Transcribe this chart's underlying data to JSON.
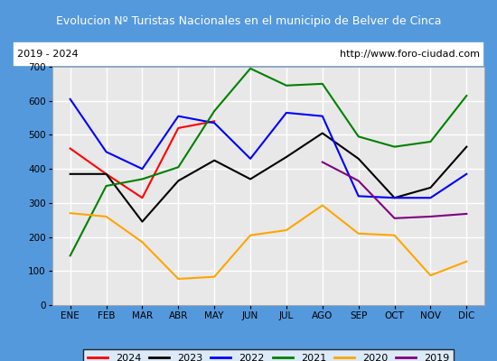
{
  "title": "Evolucion Nº Turistas Nacionales en el municipio de Belver de Cinca",
  "subtitle_left": "2019 - 2024",
  "subtitle_right": "http://www.foro-ciudad.com",
  "x_labels": [
    "ENE",
    "FEB",
    "MAR",
    "ABR",
    "MAY",
    "JUN",
    "JUL",
    "AGO",
    "SEP",
    "OCT",
    "NOV",
    "DIC"
  ],
  "ylim": [
    0,
    700
  ],
  "yticks": [
    0,
    100,
    200,
    300,
    400,
    500,
    600,
    700
  ],
  "series": {
    "2024": {
      "color": "red",
      "data": [
        460,
        385,
        315,
        520,
        540,
        null,
        null,
        null,
        null,
        null,
        null,
        null
      ]
    },
    "2023": {
      "color": "black",
      "data": [
        385,
        385,
        245,
        365,
        425,
        370,
        435,
        505,
        430,
        315,
        345,
        465
      ]
    },
    "2022": {
      "color": "blue",
      "data": [
        605,
        450,
        400,
        555,
        535,
        430,
        565,
        555,
        320,
        315,
        315,
        385
      ]
    },
    "2021": {
      "color": "green",
      "data": [
        145,
        350,
        370,
        405,
        570,
        695,
        645,
        650,
        495,
        465,
        480,
        615
      ]
    },
    "2020": {
      "color": "orange",
      "data": [
        270,
        260,
        185,
        77,
        83,
        205,
        220,
        293,
        210,
        205,
        87,
        128
      ]
    },
    "2019": {
      "color": "purple",
      "data": [
        null,
        null,
        null,
        null,
        null,
        null,
        null,
        420,
        365,
        255,
        260,
        268
      ]
    }
  },
  "title_bg_color": "#5599dd",
  "title_text_color": "white",
  "plot_bg_color": "#e8e8e8",
  "border_color": "#5599dd",
  "grid_color": "white",
  "subtitle_bg_color": "white",
  "legend_order": [
    "2024",
    "2023",
    "2022",
    "2021",
    "2020",
    "2019"
  ]
}
